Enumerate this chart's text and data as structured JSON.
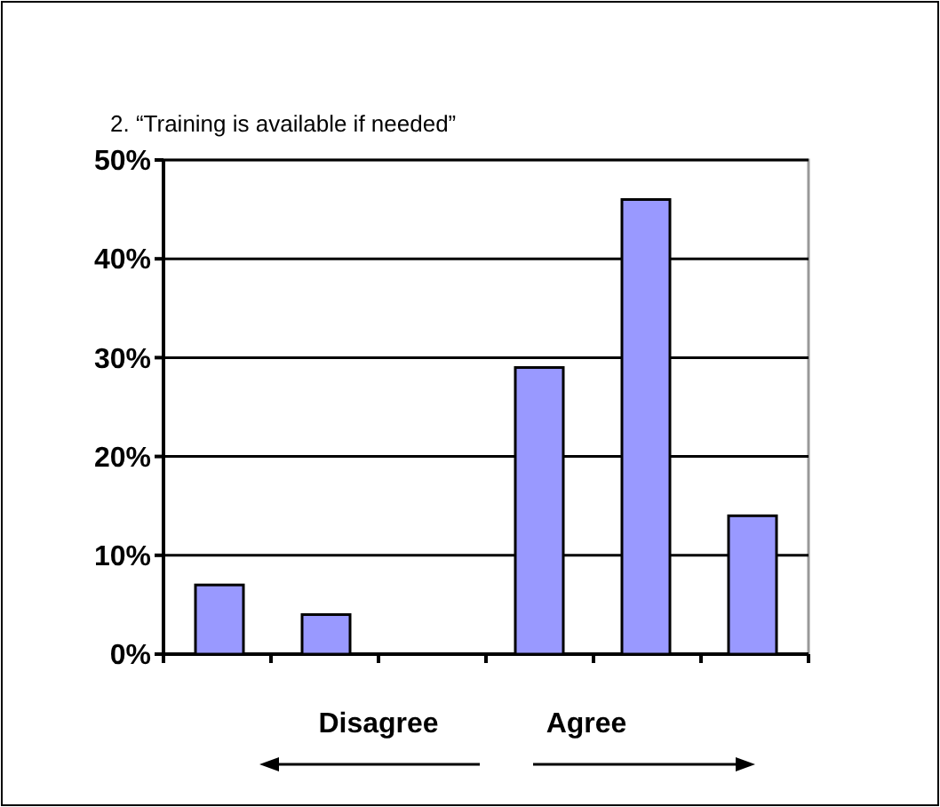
{
  "chart_data": {
    "type": "bar",
    "title": "2. “Training is available if needed”",
    "categories": [
      null,
      null,
      null,
      null,
      null,
      null
    ],
    "values": [
      7,
      4,
      0,
      29,
      46,
      14
    ],
    "color": "#9999ff",
    "ylim": [
      0,
      50
    ],
    "yticks": [
      {
        "value": 0,
        "label": "0%"
      },
      {
        "value": 10,
        "label": "10%"
      },
      {
        "value": 20,
        "label": "20%"
      },
      {
        "value": 30,
        "label": "30%"
      },
      {
        "value": 40,
        "label": "40%"
      },
      {
        "value": 50,
        "label": "50%"
      }
    ],
    "grid": "y",
    "annotations": [
      "Disagree",
      "Agree"
    ]
  }
}
